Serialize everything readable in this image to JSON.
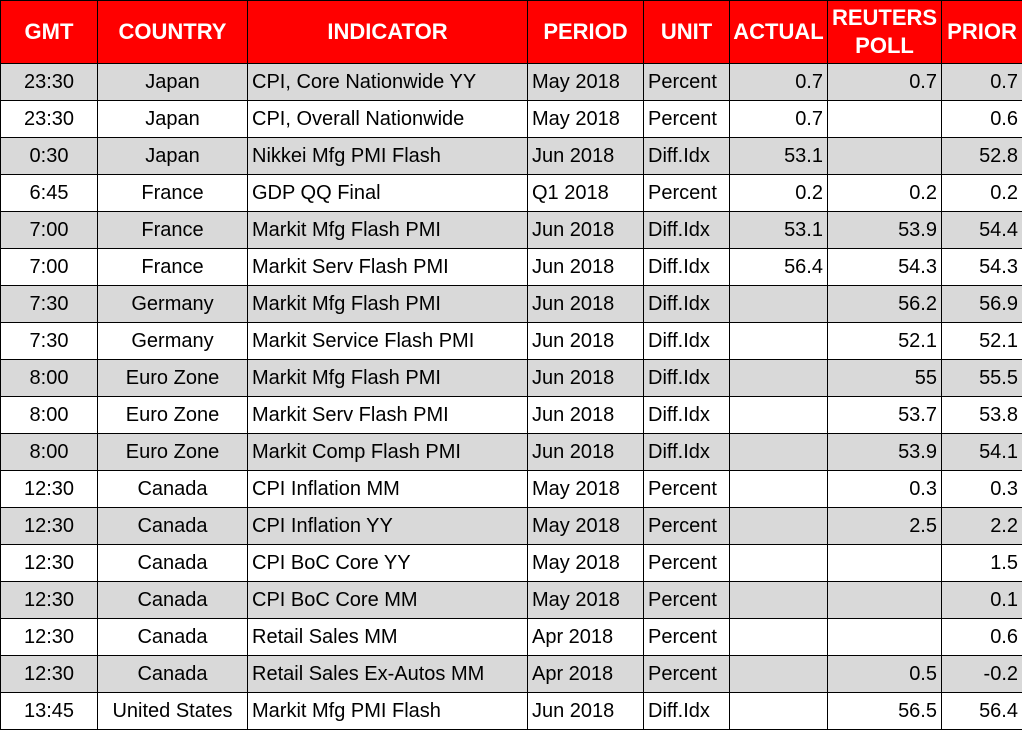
{
  "headers": {
    "gmt": "GMT",
    "country": "COUNTRY",
    "indicator": "INDICATOR",
    "period": "PERIOD",
    "unit": "UNIT",
    "actual": "ACTUAL",
    "poll_line1": "REUTERS",
    "poll_line2": "POLL",
    "prior": "PRIOR"
  },
  "rows": [
    {
      "gmt": "23:30",
      "country": "Japan",
      "indicator": "CPI, Core Nationwide YY",
      "period": "May 2018",
      "unit": "Percent",
      "actual": "0.7",
      "poll": "0.7",
      "prior": "0.7"
    },
    {
      "gmt": "23:30",
      "country": "Japan",
      "indicator": "CPI, Overall Nationwide",
      "period": "May 2018",
      "unit": "Percent",
      "actual": "0.7",
      "poll": "",
      "prior": "0.6"
    },
    {
      "gmt": "0:30",
      "country": "Japan",
      "indicator": "Nikkei Mfg PMI Flash",
      "period": "Jun 2018",
      "unit": "Diff.Idx",
      "actual": "53.1",
      "poll": "",
      "prior": "52.8"
    },
    {
      "gmt": "6:45",
      "country": "France",
      "indicator": "GDP QQ Final",
      "period": "Q1 2018",
      "unit": "Percent",
      "actual": "0.2",
      "poll": "0.2",
      "prior": "0.2"
    },
    {
      "gmt": "7:00",
      "country": "France",
      "indicator": "Markit Mfg Flash PMI",
      "period": "Jun 2018",
      "unit": "Diff.Idx",
      "actual": "53.1",
      "poll": "53.9",
      "prior": "54.4"
    },
    {
      "gmt": "7:00",
      "country": "France",
      "indicator": "Markit Serv Flash PMI",
      "period": "Jun 2018",
      "unit": "Diff.Idx",
      "actual": "56.4",
      "poll": "54.3",
      "prior": "54.3"
    },
    {
      "gmt": "7:30",
      "country": "Germany",
      "indicator": "Markit Mfg Flash PMI",
      "period": "Jun 2018",
      "unit": "Diff.Idx",
      "actual": "",
      "poll": "56.2",
      "prior": "56.9"
    },
    {
      "gmt": "7:30",
      "country": "Germany",
      "indicator": "Markit Service Flash PMI",
      "period": "Jun 2018",
      "unit": "Diff.Idx",
      "actual": "",
      "poll": "52.1",
      "prior": "52.1"
    },
    {
      "gmt": "8:00",
      "country": "Euro Zone",
      "indicator": "Markit Mfg Flash PMI",
      "period": "Jun 2018",
      "unit": "Diff.Idx",
      "actual": "",
      "poll": "55",
      "prior": "55.5"
    },
    {
      "gmt": "8:00",
      "country": "Euro Zone",
      "indicator": "Markit Serv Flash PMI",
      "period": "Jun 2018",
      "unit": "Diff.Idx",
      "actual": "",
      "poll": "53.7",
      "prior": "53.8"
    },
    {
      "gmt": "8:00",
      "country": "Euro Zone",
      "indicator": "Markit Comp Flash PMI",
      "period": "Jun 2018",
      "unit": "Diff.Idx",
      "actual": "",
      "poll": "53.9",
      "prior": "54.1"
    },
    {
      "gmt": "12:30",
      "country": "Canada",
      "indicator": "CPI Inflation MM",
      "period": "May 2018",
      "unit": "Percent",
      "actual": "",
      "poll": "0.3",
      "prior": "0.3"
    },
    {
      "gmt": "12:30",
      "country": "Canada",
      "indicator": "CPI Inflation YY",
      "period": "May 2018",
      "unit": "Percent",
      "actual": "",
      "poll": "2.5",
      "prior": "2.2"
    },
    {
      "gmt": "12:30",
      "country": "Canada",
      "indicator": "CPI BoC Core YY",
      "period": "May 2018",
      "unit": "Percent",
      "actual": "",
      "poll": "",
      "prior": "1.5"
    },
    {
      "gmt": "12:30",
      "country": "Canada",
      "indicator": "CPI BoC Core MM",
      "period": "May 2018",
      "unit": "Percent",
      "actual": "",
      "poll": "",
      "prior": "0.1"
    },
    {
      "gmt": "12:30",
      "country": "Canada",
      "indicator": "Retail Sales MM",
      "period": "Apr 2018",
      "unit": "Percent",
      "actual": "",
      "poll": "",
      "prior": "0.6"
    },
    {
      "gmt": "12:30",
      "country": "Canada",
      "indicator": "Retail Sales Ex-Autos MM",
      "period": "Apr 2018",
      "unit": "Percent",
      "actual": "",
      "poll": "0.5",
      "prior": "-0.2"
    },
    {
      "gmt": "13:45",
      "country": "United States",
      "indicator": "Markit Mfg PMI Flash",
      "period": "Jun 2018",
      "unit": "Diff.Idx",
      "actual": "",
      "poll": "56.5",
      "prior": "56.4"
    }
  ],
  "colors": {
    "header_bg": "#ff0000",
    "header_text": "#ffffff",
    "row_shade": "#d9d9d9",
    "row_plain": "#ffffff",
    "grid": "#000000"
  }
}
